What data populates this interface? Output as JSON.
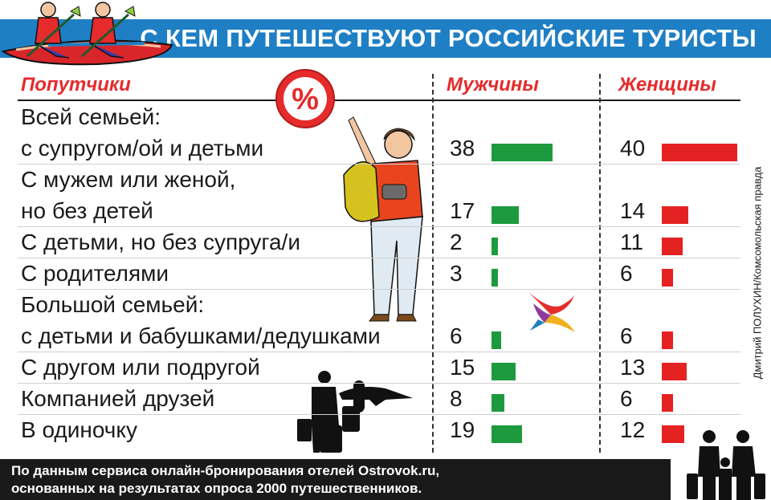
{
  "header": {
    "title": "С КЕМ ПУТЕШЕСТВУЮТ РОССИЙСКИЕ ТУРИСТЫ"
  },
  "columns": {
    "companions": "Попутчики",
    "men": "Мужчины",
    "women": "Женщины"
  },
  "badge": {
    "symbol": "%"
  },
  "credit": "Дмитрий ПОЛУХИН/Комсомольская правда",
  "footer": {
    "line1": "По данным сервиса онлайн-бронирования отелей Ostrovok.ru,",
    "line2": "основанных на результатах опроса 2000 путешественников."
  },
  "colors": {
    "men": "#1e9a3e",
    "women": "#e52222",
    "header": "#1f7fc4",
    "accent": "#e52b2b"
  },
  "icons": [
    "kayak-rowers-icon",
    "percent-badge-icon",
    "pointing-tourist-icon",
    "bird-logo-icon",
    "airplane-travelers-icon",
    "family-luggage-icon"
  ],
  "chart_data": {
    "type": "bar",
    "title": "С КЕМ ПУТЕШЕСТВУЮТ РОССИЙСКИЕ ТУРИСТЫ",
    "categories": [
      [
        "Всей семьей:",
        "с супругом/ой и детьми"
      ],
      [
        "С мужем или женой,",
        "но без детей"
      ],
      [
        "С детьми, но без супруга/и"
      ],
      [
        "С родителями"
      ],
      [
        "Большой семьей:",
        "с детьми и бабушками/дедушками"
      ],
      [
        "С другом или подругой"
      ],
      [
        "Компанией друзей"
      ],
      [
        "В одиночку"
      ]
    ],
    "series": [
      {
        "name": "Мужчины",
        "values": [
          38,
          17,
          2,
          3,
          6,
          15,
          8,
          19
        ]
      },
      {
        "name": "Женщины",
        "values": [
          40,
          14,
          11,
          6,
          6,
          13,
          6,
          12
        ]
      }
    ]
  }
}
